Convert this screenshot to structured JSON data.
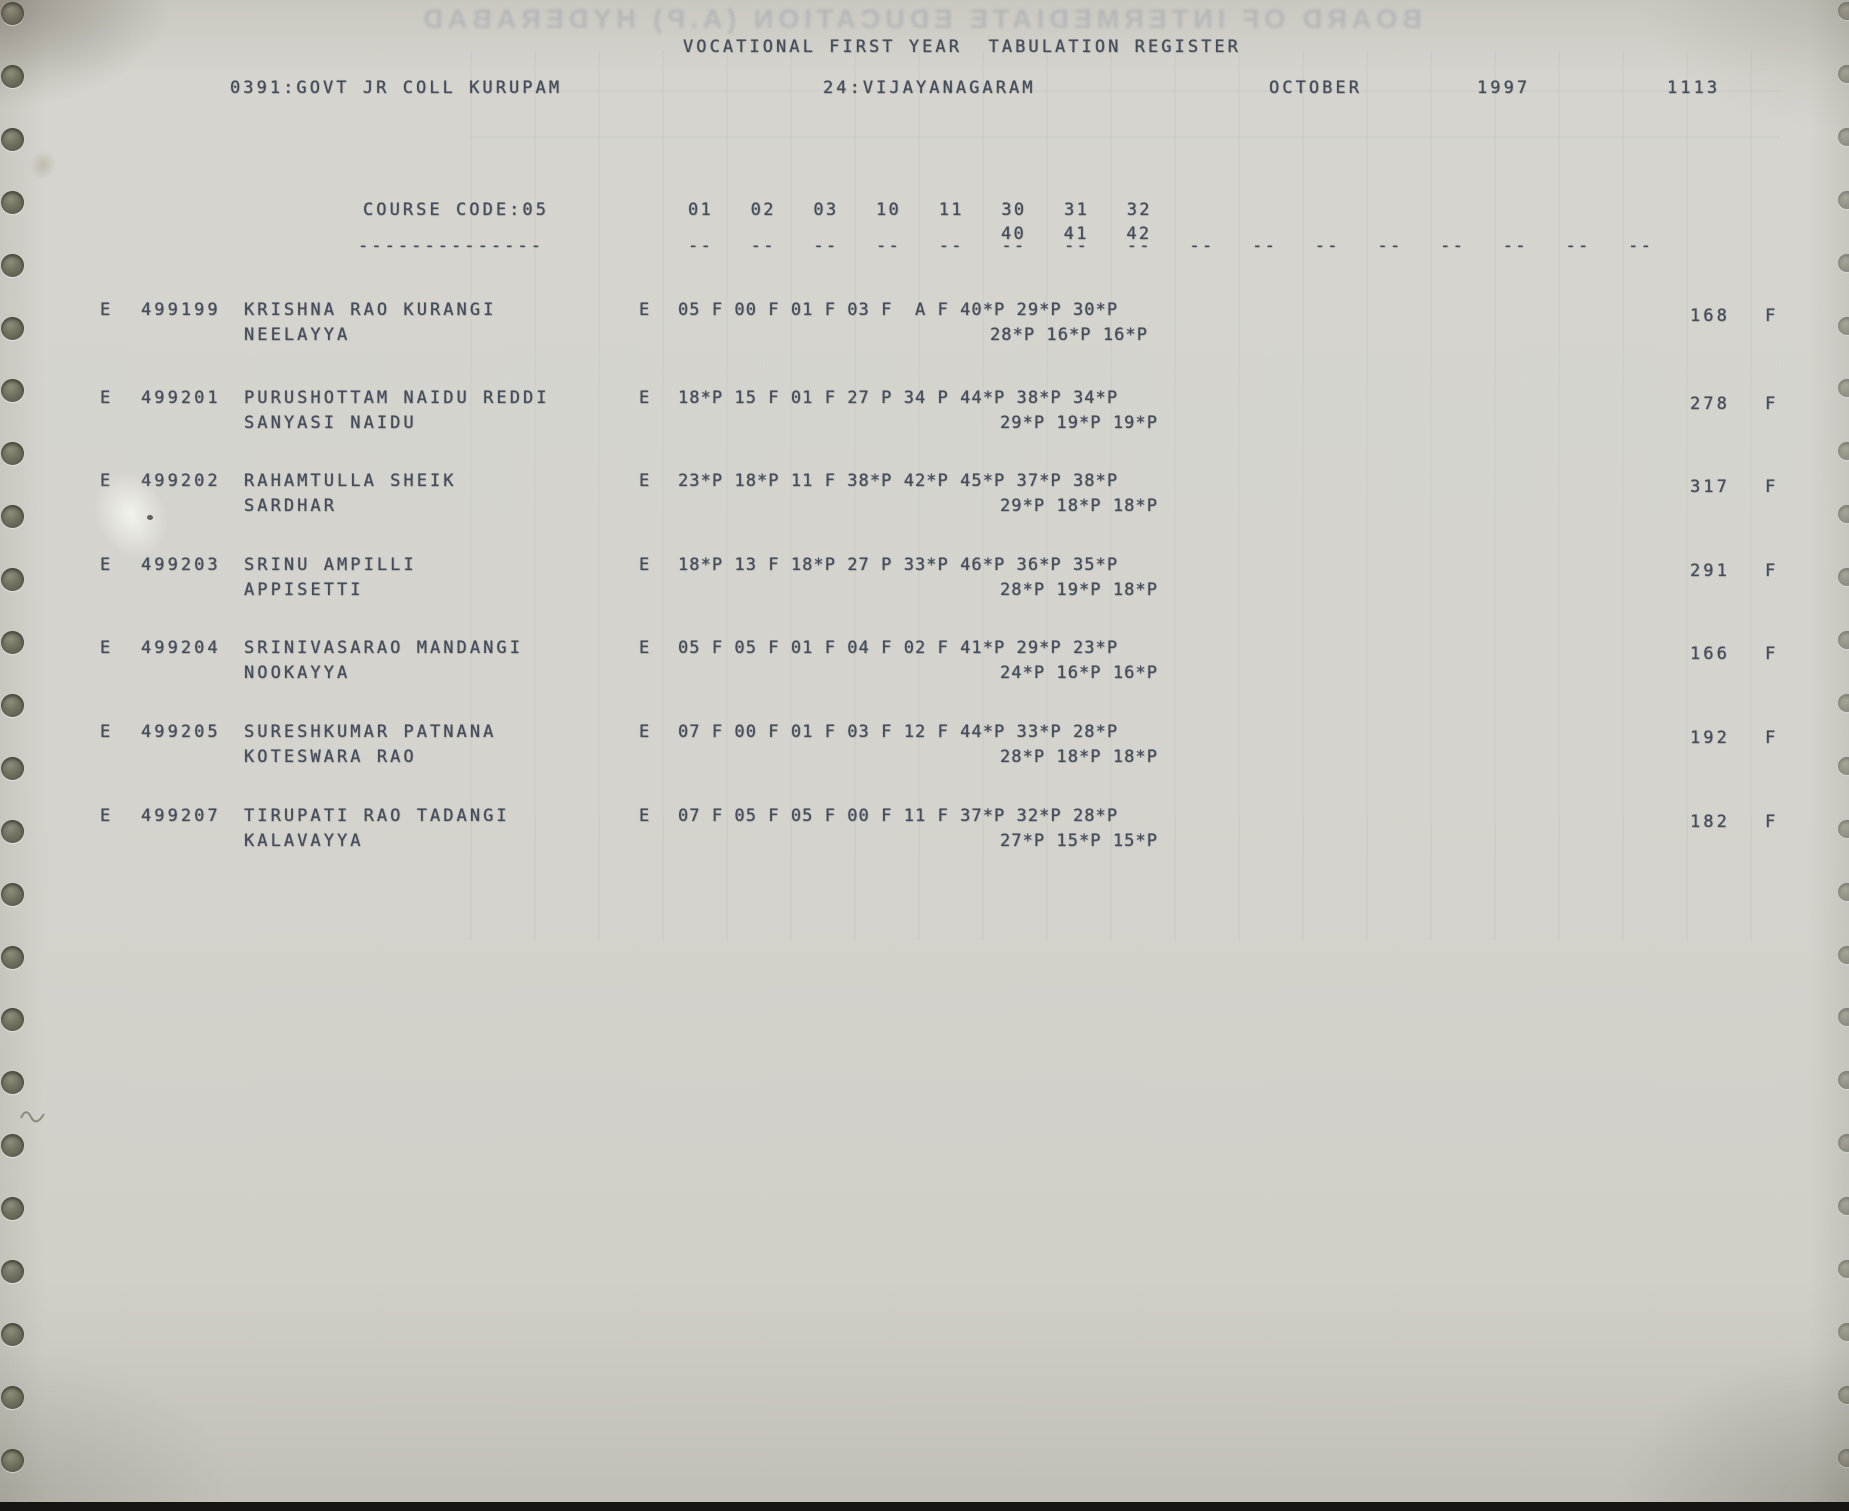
{
  "header": {
    "ghost_text": "BOARD OF INTERMEDIATE EDUCATION (A.P) HYDERABAD",
    "title": "VOCATIONAL FIRST YEAR  TABULATION REGISTER",
    "college": "0391:GOVT JR COLL KURUPAM",
    "district": "24:VIJAYANAGARAM",
    "month": "OCTOBER",
    "year": "1997",
    "sheet_no": "1113"
  },
  "course": {
    "label": "COURSE CODE:05",
    "underline": "--------------",
    "subjects_line1": "01   02   03   10   11   30   31   32",
    "subjects_line2": "40   41   42",
    "column_dashes": "--   --   --   --   --   --   --   --   --   --   --   --   --   --   --   --"
  },
  "students": [
    {
      "medium": "E",
      "reg_no": "499199",
      "name_line1": "KRISHNA RAO KURANGI",
      "name_line2": "NEELAYYA",
      "medium2": "E",
      "marks_line1": "05 F 00 F 01 F 03 F  A F 40*P 29*P 30*P",
      "marks_line2": "28*P 16*P 16*P",
      "total": "168",
      "result": "F"
    },
    {
      "medium": "E",
      "reg_no": "499201",
      "name_line1": "PURUSHOTTAM NAIDU REDDI",
      "name_line2": "SANYASI NAIDU",
      "medium2": "E",
      "marks_line1": "18*P 15 F 01 F 27 P 34 P 44*P 38*P 34*P",
      "marks_line2": "29*P 19*P 19*P",
      "total": "278",
      "result": "F"
    },
    {
      "medium": "E",
      "reg_no": "499202",
      "name_line1": "RAHAMTULLA SHEIK",
      "name_line2": "SARDHAR",
      "medium2": "E",
      "marks_line1": "23*P 18*P 11 F 38*P 42*P 45*P 37*P 38*P",
      "marks_line2": "29*P 18*P 18*P",
      "total": "317",
      "result": "F"
    },
    {
      "medium": "E",
      "reg_no": "499203",
      "name_line1": "SRINU AMPILLI",
      "name_line2": "APPISETTI",
      "medium2": "E",
      "marks_line1": "18*P 13 F 18*P 27 P 33*P 46*P 36*P 35*P",
      "marks_line2": "28*P 19*P 18*P",
      "total": "291",
      "result": "F"
    },
    {
      "medium": "E",
      "reg_no": "499204",
      "name_line1": "SRINIVASARAO MANDANGI",
      "name_line2": "NOOKAYYA",
      "medium2": "E",
      "marks_line1": "05 F 05 F 01 F 04 F 02 F 41*P 29*P 23*P",
      "marks_line2": "24*P 16*P 16*P",
      "total": "166",
      "result": "F"
    },
    {
      "medium": "E",
      "reg_no": "499205",
      "name_line1": "SURESHKUMAR PATNANA",
      "name_line2": "KOTESWARA RAO",
      "medium2": "E",
      "marks_line1": "07 F 00 F 01 F 03 F 12 F 44*P 33*P 28*P",
      "marks_line2": "28*P 18*P 18*P",
      "total": "192",
      "result": "F"
    },
    {
      "medium": "E",
      "reg_no": "499207",
      "name_line1": "TIRUPATI RAO TADANGI",
      "name_line2": "KALAVAYYA",
      "medium2": "E",
      "marks_line1": "07 F 05 F 05 F 00 F 11 F 37*P 32*P 28*P",
      "marks_line2": "27*P 15*P 15*P",
      "total": "182",
      "result": "F"
    }
  ]
}
